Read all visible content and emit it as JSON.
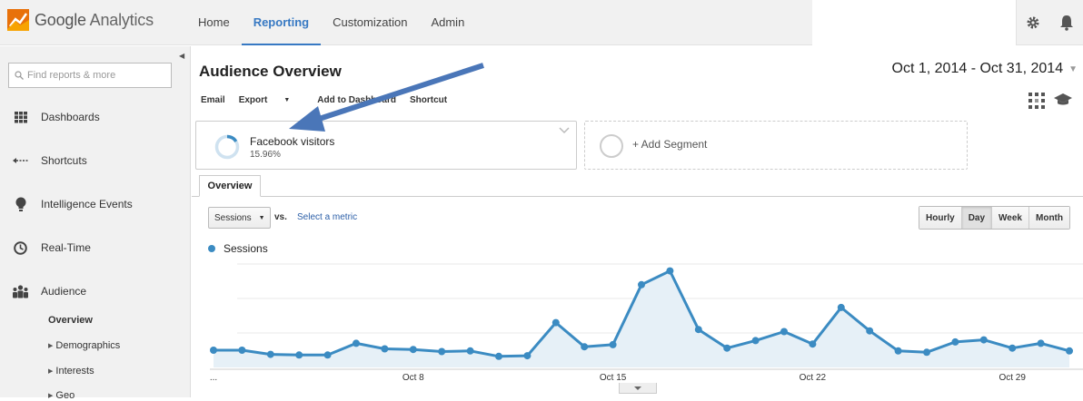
{
  "app": {
    "name_part1": "Google",
    "name_part2": "Analytics"
  },
  "topnav": [
    {
      "label": "Home"
    },
    {
      "label": "Reporting"
    },
    {
      "label": "Customization"
    },
    {
      "label": "Admin"
    }
  ],
  "sidebar": {
    "search_placeholder": "Find reports & more",
    "items": [
      {
        "label": "Dashboards",
        "icon": "grid-icon"
      },
      {
        "label": "Shortcuts",
        "icon": "shortcut-arrow-icon"
      },
      {
        "label": "Intelligence Events",
        "icon": "lightbulb-icon"
      },
      {
        "label": "Real-Time",
        "icon": "clock-icon"
      },
      {
        "label": "Audience",
        "icon": "people-icon"
      }
    ],
    "subitems": [
      {
        "label": "Overview"
      },
      {
        "label": "Demographics"
      },
      {
        "label": "Interests"
      },
      {
        "label": "Geo"
      }
    ]
  },
  "main": {
    "title": "Audience Overview",
    "date_range": "Oct 1, 2014 - Oct 31, 2014",
    "actions": [
      "Email",
      "Export",
      "Add to Dashboard",
      "Shortcut"
    ],
    "segment": {
      "name": "Facebook visitors",
      "percent": "15.96%",
      "fill_fraction": 0.1596
    },
    "add_segment": "+ Add Segment",
    "tab": "Overview",
    "metric_select": "Sessions",
    "vs": "vs.",
    "select_metric": "Select a metric",
    "granularity": [
      "Hourly",
      "Day",
      "Week",
      "Month"
    ],
    "granularity_active": "Day",
    "legend": "Sessions"
  },
  "colors": {
    "accent": "#3779c3",
    "series": "#3b8bc2",
    "area": "#e6f0f7",
    "arrow": "#4a76b8"
  },
  "chart_data": {
    "type": "area",
    "series": [
      {
        "name": "Sessions",
        "values": [
          25,
          25,
          19,
          18,
          18,
          35,
          27,
          26,
          23,
          24,
          16,
          17,
          65,
          30,
          33,
          120,
          140,
          55,
          28,
          39,
          52,
          34,
          87,
          53,
          24,
          22,
          37,
          40,
          28,
          35,
          24
        ]
      }
    ],
    "x_ticks": [
      {
        "day": 8,
        "label": "Oct 8"
      },
      {
        "day": 15,
        "label": "Oct 15"
      },
      {
        "day": 22,
        "label": "Oct 22"
      },
      {
        "day": 29,
        "label": "Oct 29"
      }
    ],
    "start_label": "...",
    "ylim": [
      0,
      150
    ],
    "grid": true
  }
}
